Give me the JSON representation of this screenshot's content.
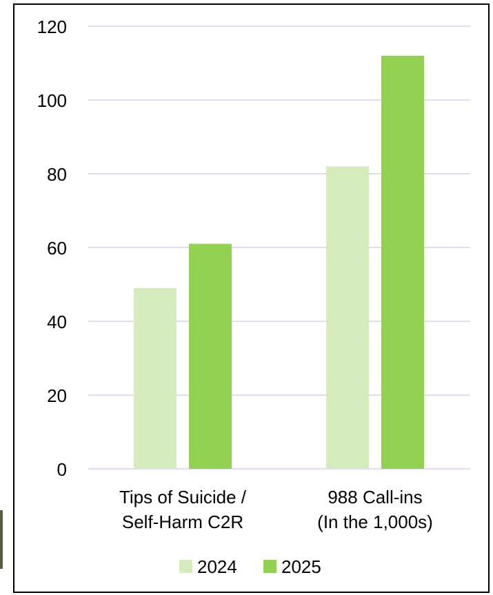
{
  "chart_data": {
    "type": "bar",
    "categories": [
      [
        "Tips of Suicide /",
        "Self-Harm C2R"
      ],
      [
        "988 Call-ins",
        "(In the 1,000s)"
      ]
    ],
    "series": [
      {
        "name": "2024",
        "values": [
          49,
          82
        ],
        "color": "#d4ecbc"
      },
      {
        "name": "2025",
        "values": [
          61,
          112
        ],
        "color": "#92d050"
      }
    ],
    "y_ticks": [
      "0",
      "20",
      "40",
      "60",
      "80",
      "100",
      "120"
    ],
    "ylim": [
      0,
      120
    ],
    "grid": true,
    "grid_color": "#d3cfee",
    "legend_position": "bottom",
    "title": "",
    "xlabel": "",
    "ylabel": ""
  }
}
